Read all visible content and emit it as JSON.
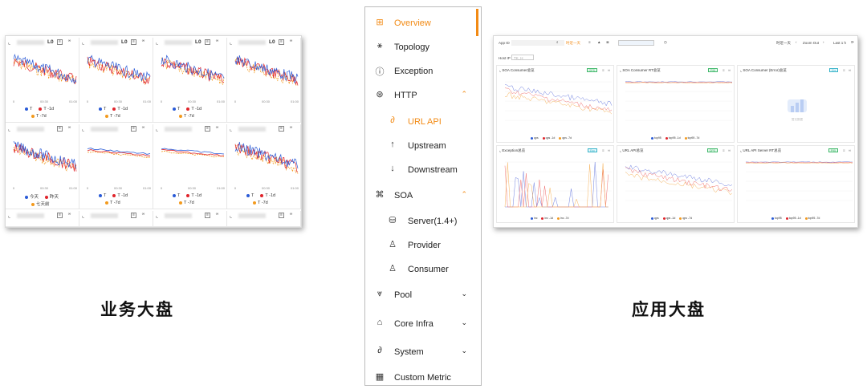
{
  "business_dashboard": {
    "caption": "业务大盘",
    "panels": [
      {
        "title": "L0",
        "legend": [
          "T",
          "T -1d",
          "T -7d"
        ],
        "x_ticks": [
          "0",
          "00:30",
          "01:00"
        ]
      },
      {
        "title": "L0",
        "legend": [
          "T",
          "T -1d",
          "T -7d"
        ],
        "x_ticks": [
          "0",
          "00:30",
          "01:00"
        ]
      },
      {
        "title": "L0",
        "legend": [
          "T",
          "T -1d",
          "T -7d"
        ],
        "x_ticks": [
          "0",
          "00:30",
          "01:00"
        ]
      },
      {
        "title": "L0",
        "legend": [],
        "x_ticks": [
          "0",
          "00:30",
          "01:00"
        ]
      },
      {
        "title": "",
        "legend": [
          "今天",
          "昨天",
          "七天前"
        ],
        "x_ticks": [
          "0",
          "00:30",
          "01:00"
        ]
      },
      {
        "title": "",
        "legend": [
          "T",
          "T -1d",
          "T -7d"
        ],
        "x_ticks": [
          "0",
          "00:30",
          "01:00"
        ]
      },
      {
        "title": "",
        "legend": [
          "T",
          "T -1d",
          "T -7d"
        ],
        "x_ticks": [
          "0",
          "00:30",
          "01:00"
        ]
      },
      {
        "title": "",
        "legend": [
          "T",
          "T -1d",
          "T -7d"
        ],
        "x_ticks": [
          "0",
          "00:30",
          "01:00"
        ]
      }
    ],
    "colors": {
      "t": "#2a5bd7",
      "t1d": "#e0242b",
      "t7d": "#f39a1d"
    }
  },
  "menu": {
    "items": [
      {
        "label": "Overview",
        "icon": "grid-icon",
        "glyph": "⊞",
        "active": true
      },
      {
        "label": "Topology",
        "icon": "topology-icon",
        "glyph": "⚹"
      },
      {
        "label": "Exception",
        "icon": "exclamation-circle-icon",
        "glyph": "ⓘ"
      },
      {
        "label": "HTTP",
        "icon": "globe-icon",
        "glyph": "⊛",
        "chevron": "⌃"
      },
      {
        "label": "URL API",
        "icon": "link-icon",
        "glyph": "∂",
        "sub": true,
        "active_sub": true
      },
      {
        "label": "Upstream",
        "icon": "arrow-up-icon",
        "glyph": "↑",
        "sub": true
      },
      {
        "label": "Downstream",
        "icon": "arrow-down-icon",
        "glyph": "↓",
        "sub": true
      },
      {
        "label": "SOA",
        "icon": "command-icon",
        "glyph": "⌘",
        "chevron": "⌃"
      },
      {
        "label": "Server(1.4+)",
        "icon": "database-icon",
        "glyph": "⛁",
        "sub": true
      },
      {
        "label": "Provider",
        "icon": "provider-icon",
        "glyph": "♙",
        "sub": true
      },
      {
        "label": "Consumer",
        "icon": "consumer-icon",
        "glyph": "♙",
        "sub": true
      },
      {
        "label": "Pool",
        "icon": "pool-icon",
        "glyph": "⩔",
        "chevron": "⌄"
      },
      {
        "label": "Core Infra",
        "icon": "infra-icon",
        "glyph": "⌂",
        "chevron": "⌄"
      },
      {
        "label": "System",
        "icon": "system-icon",
        "glyph": "∂",
        "chevron": "⌄"
      },
      {
        "label": "Custom Metric",
        "icon": "custom-metric-icon",
        "glyph": "▦"
      }
    ],
    "accent": "#f28a14"
  },
  "app_dashboard": {
    "caption": "应用大盘",
    "toolbar": {
      "app_id_label": "App ID",
      "host_ip_label": "Host IP",
      "host_ip_placeholder": "TK_H",
      "range_label": "时近一天",
      "zoom_out": "Zoom Out",
      "last": "Last 1 h"
    },
    "panels": [
      {
        "title": "SOA Consumer总览",
        "tag": "QPS",
        "legend": [
          "qps",
          "qps -1d",
          "qps -7d"
        ]
      },
      {
        "title": "SOA Consumer RT总览",
        "tag": "P95",
        "legend": [
          "top95",
          "top95 -1d",
          "top95 -7d"
        ]
      },
      {
        "title": "SOA Consumer (Error)总览",
        "tag": "Err",
        "legend": [],
        "empty_text": "暂无数据"
      },
      {
        "title": "Exception总览",
        "tag": "Exc",
        "legend": [
          "inc",
          "inc -1d",
          "inc -7d"
        ]
      },
      {
        "title": "URL API总览",
        "tag": "QPS",
        "legend": [
          "qps",
          "qps -1d",
          "qps -7d"
        ]
      },
      {
        "title": "URL API Server RT总览",
        "tag": "P95",
        "legend": [
          "top95",
          "top95 -1d",
          "top95 -7d"
        ]
      }
    ]
  }
}
